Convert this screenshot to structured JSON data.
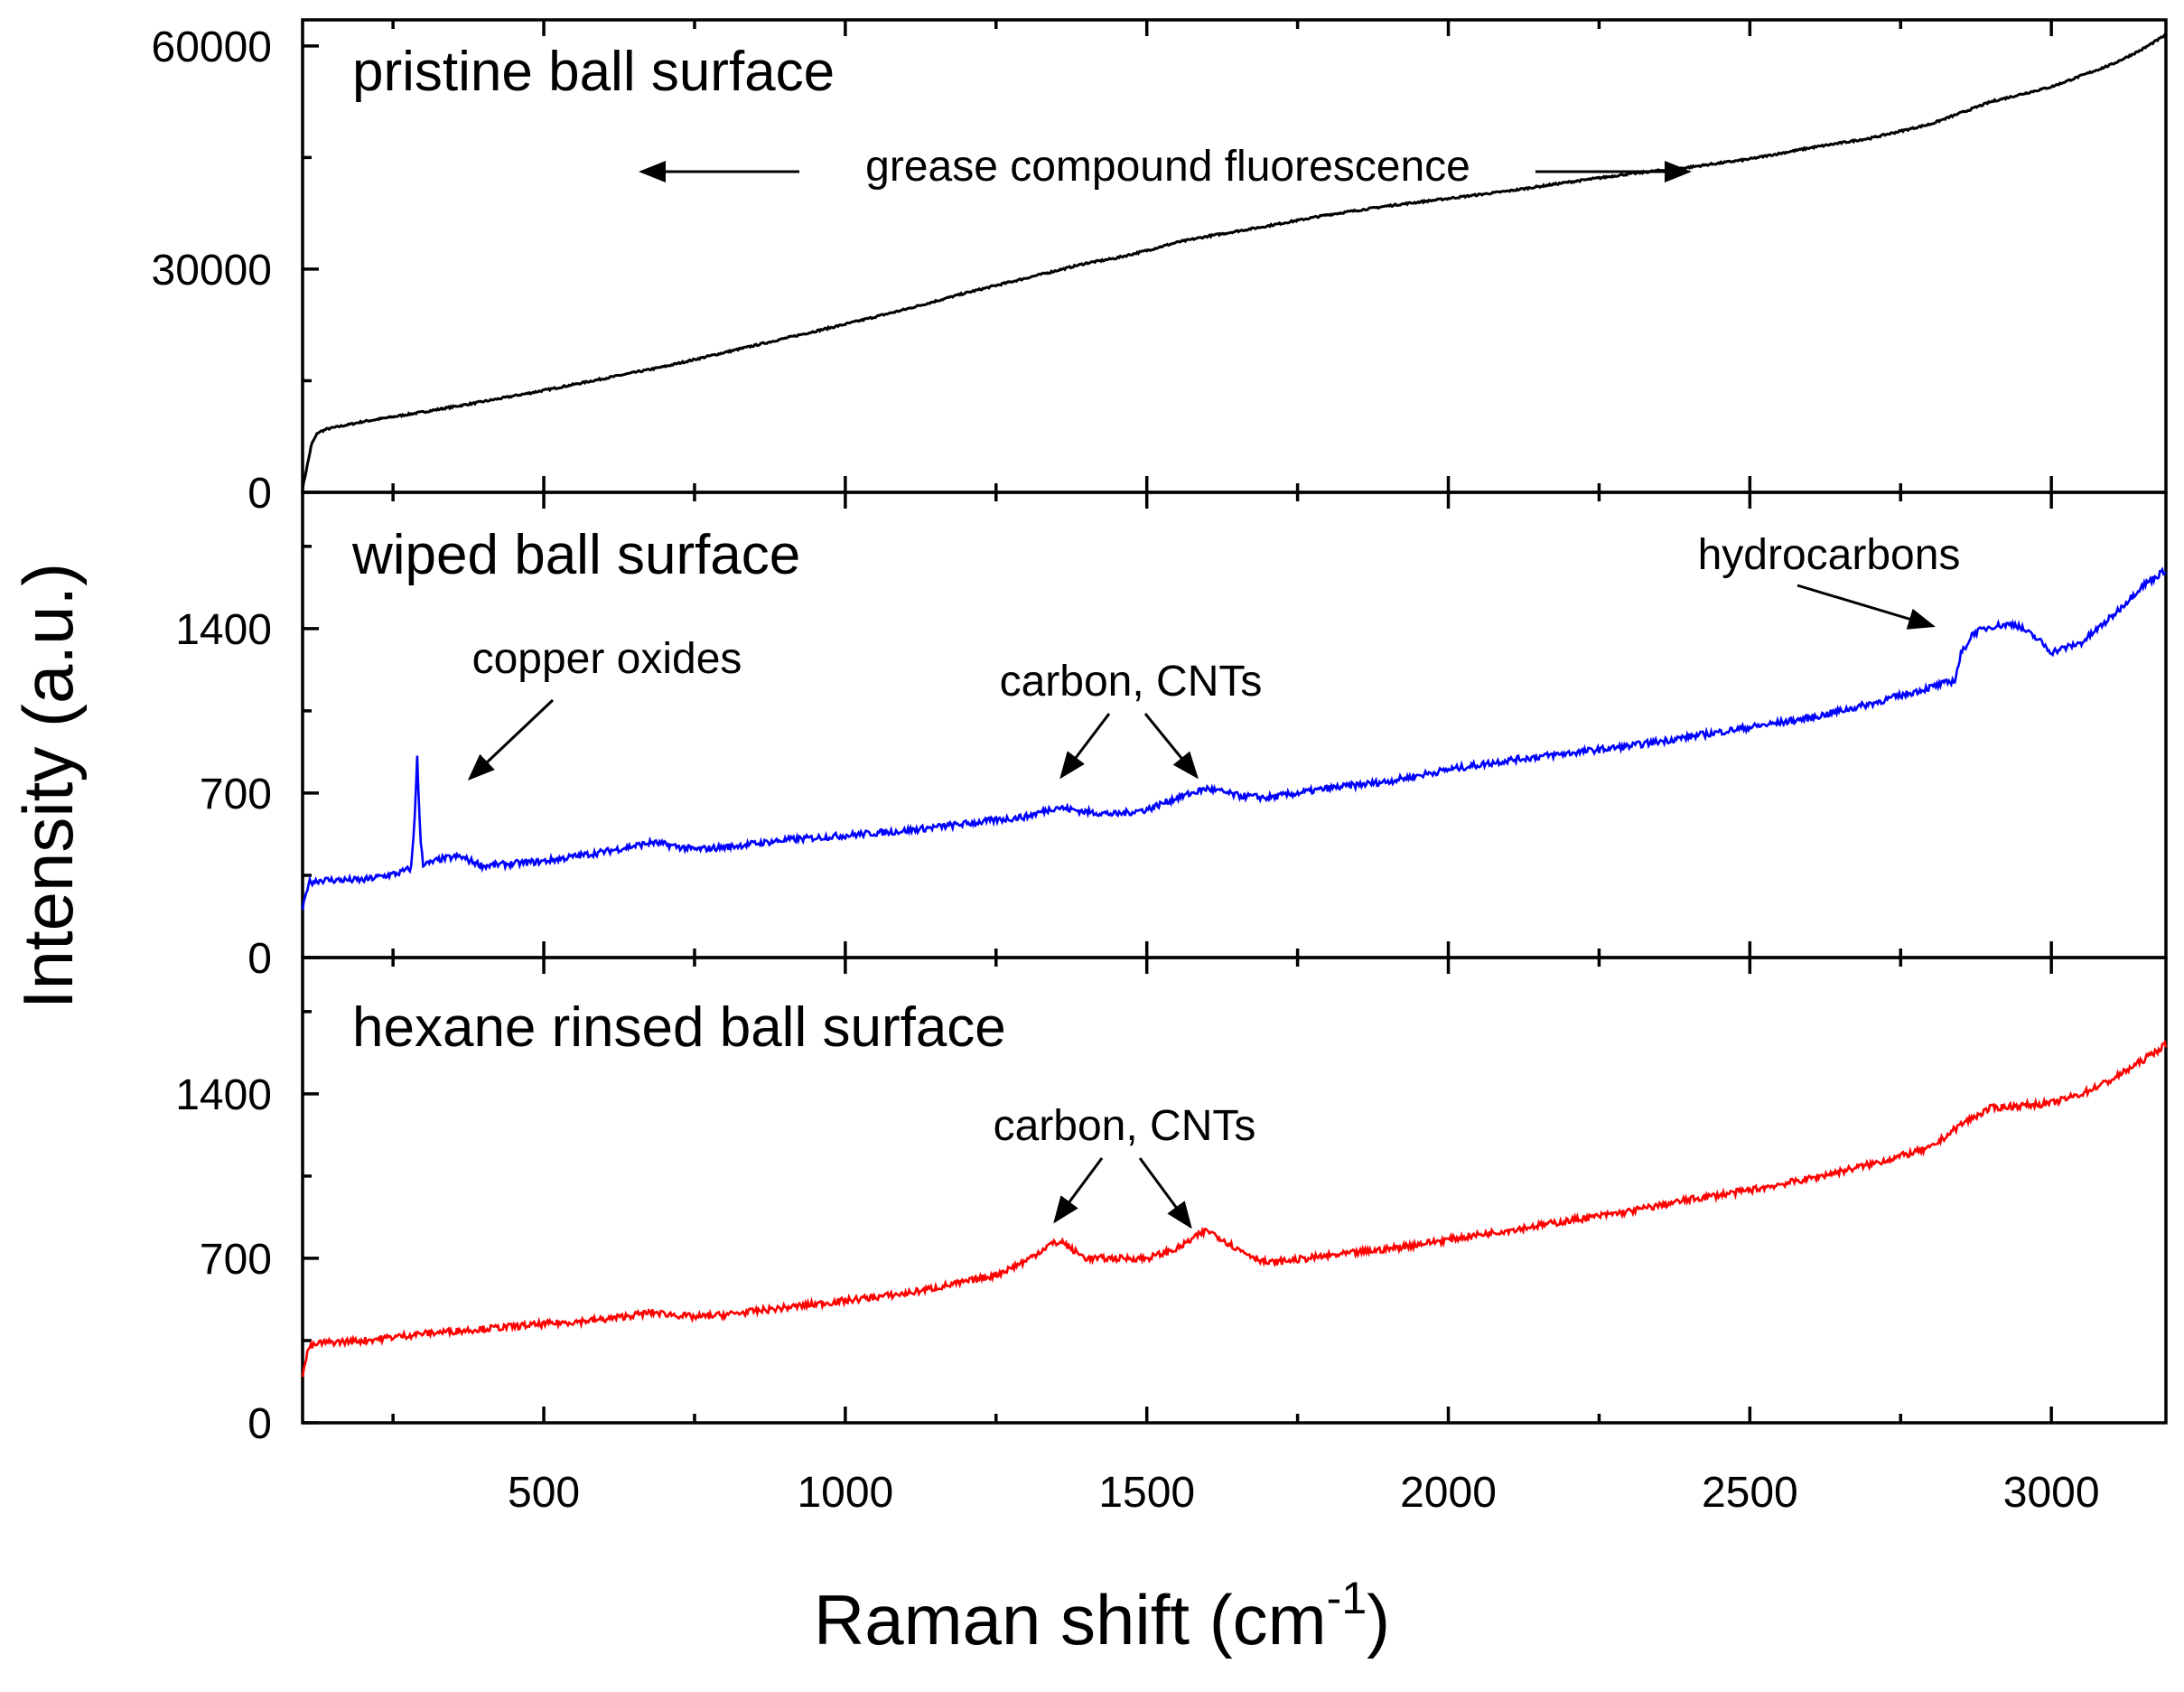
{
  "chart_data": {
    "type": "line",
    "xlabel": "Raman shift (cm",
    "xlabel_sup": "-1",
    "xlabel_close": ")",
    "ylabel": "Intensity (a.u.)",
    "xlim": [
      100,
      3190
    ],
    "x_ticks": [
      500,
      1000,
      1500,
      2000,
      2500,
      3000
    ],
    "x_tick_labels": [
      "500",
      "1000",
      "1500",
      "2000",
      "2500",
      "3000"
    ],
    "panels": [
      {
        "title": "pristine ball surface",
        "color": "#000000",
        "ylim": [
          0,
          63500
        ],
        "y_ticks": [
          0,
          30000,
          60000
        ],
        "y_tick_labels": [
          "0",
          "30000",
          "60000"
        ],
        "series": {
          "name": "pristine ball surface",
          "x": [
            100,
            105,
            110,
            115,
            125,
            140,
            200,
            300,
            400,
            500,
            600,
            700,
            800,
            900,
            1000,
            1100,
            1200,
            1300,
            1350,
            1400,
            1450,
            1500,
            1550,
            1600,
            1700,
            1800,
            1850,
            1900,
            2000,
            2100,
            2200,
            2300,
            2400,
            2500,
            2600,
            2700,
            2800,
            2900,
            3000,
            3100,
            3150,
            3190
          ],
          "y": [
            500,
            2500,
            4500,
            6500,
            8000,
            8500,
            9500,
            10800,
            12200,
            13700,
            15300,
            16900,
            18800,
            20700,
            22600,
            24600,
            26800,
            28800,
            29800,
            30800,
            31500,
            32500,
            33600,
            34400,
            35800,
            37300,
            37900,
            38500,
            39500,
            40500,
            41700,
            42800,
            43700,
            44800,
            46300,
            47600,
            49500,
            52500,
            54500,
            57500,
            59500,
            61500
          ]
        },
        "annotations": [
          {
            "text": "grease compound fluorescence"
          }
        ]
      },
      {
        "title": "wiped ball surface",
        "color": "#0000ff",
        "ylim": [
          0,
          1980
        ],
        "y_ticks": [
          0,
          700,
          1400
        ],
        "y_tick_labels": [
          "0",
          "700",
          "1400"
        ],
        "series": {
          "name": "wiped ball surface",
          "x": [
            100,
            110,
            130,
            200,
            260,
            280,
            285,
            290,
            295,
            300,
            310,
            330,
            360,
            400,
            500,
            600,
            680,
            750,
            800,
            900,
            1000,
            1100,
            1200,
            1300,
            1350,
            1400,
            1450,
            1500,
            1550,
            1600,
            1650,
            1700,
            1800,
            1900,
            2000,
            2100,
            2200,
            2300,
            2400,
            2500,
            2600,
            2700,
            2800,
            2840,
            2850,
            2870,
            2900,
            2940,
            2980,
            3000,
            3050,
            3100,
            3150,
            3190
          ],
          "y": [
            200,
            320,
            330,
            330,
            360,
            380,
            550,
            850,
            520,
            400,
            400,
            420,
            430,
            390,
            410,
            450,
            490,
            460,
            470,
            500,
            520,
            540,
            570,
            600,
            640,
            620,
            610,
            630,
            680,
            720,
            690,
            680,
            720,
            750,
            800,
            840,
            870,
            900,
            940,
            980,
            1020,
            1080,
            1150,
            1180,
            1290,
            1380,
            1410,
            1420,
            1350,
            1300,
            1340,
            1450,
            1580,
            1650
          ]
        },
        "annotations": [
          {
            "text": "copper oxides"
          },
          {
            "text": "carbon, CNTs"
          },
          {
            "text": "hydrocarbons"
          }
        ]
      },
      {
        "title": "hexane rinsed ball surface",
        "color": "#ff0000",
        "ylim": [
          0,
          1980
        ],
        "y_ticks": [
          0,
          700,
          1400
        ],
        "y_tick_labels": [
          "0",
          "700",
          "1400"
        ],
        "series": {
          "name": "hexane rinsed ball surface",
          "x": [
            100,
            110,
            130,
            200,
            300,
            400,
            500,
            600,
            680,
            750,
            800,
            900,
            1000,
            1100,
            1200,
            1250,
            1300,
            1340,
            1360,
            1380,
            1400,
            1450,
            1500,
            1550,
            1580,
            1600,
            1620,
            1650,
            1700,
            1800,
            1900,
            2000,
            2100,
            2200,
            2300,
            2400,
            2500,
            2600,
            2700,
            2800,
            2850,
            2900,
            2950,
            3000,
            3050,
            3100,
            3150,
            3190
          ],
          "y": [
            200,
            320,
            340,
            350,
            380,
            400,
            420,
            440,
            470,
            450,
            460,
            490,
            520,
            550,
            600,
            630,
            690,
            760,
            770,
            730,
            700,
            700,
            700,
            740,
            790,
            820,
            790,
            740,
            680,
            710,
            740,
            780,
            820,
            860,
            900,
            950,
            990,
            1040,
            1100,
            1170,
            1270,
            1340,
            1350,
            1360,
            1400,
            1460,
            1540,
            1610
          ]
        },
        "annotations": [
          {
            "text": "carbon, CNTs"
          }
        ]
      }
    ]
  }
}
